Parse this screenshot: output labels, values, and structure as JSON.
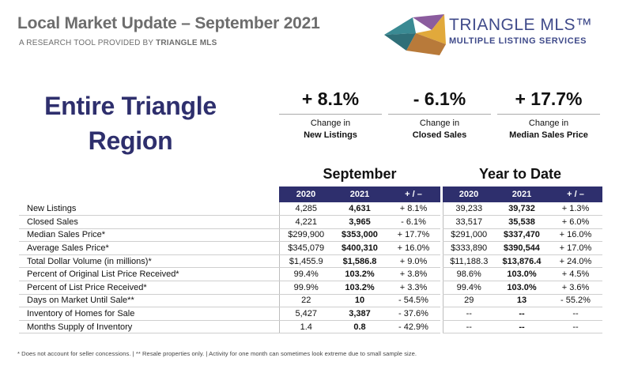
{
  "header": {
    "title": "Local Market Update – September 2021",
    "subtitle_prefix": "A RESEARCH TOOL PROVIDED BY ",
    "subtitle_brand": "TRIANGLE MLS"
  },
  "logo": {
    "name": "TRIANGLE MLS™",
    "tagline": "MULTIPLE LISTING SERVICES",
    "colors": [
      "#3a8a93",
      "#e1a93b",
      "#8b5c9e",
      "#b87a3a",
      "#6b4c8a"
    ]
  },
  "region": {
    "line1": "Entire Triangle",
    "line2": "Region"
  },
  "kpis": [
    {
      "value": "+ 8.1%",
      "label1": "Change in",
      "label2": "New Listings"
    },
    {
      "value": "- 6.1%",
      "label1": "Change in",
      "label2": "Closed Sales"
    },
    {
      "value": "+ 17.7%",
      "label1": "Change in",
      "label2": "Median Sales Price"
    }
  ],
  "table": {
    "group1": "September",
    "group2": "Year to Date",
    "columns": [
      "2020",
      "2021",
      "+ / –",
      "2020",
      "2021",
      "+ / –"
    ],
    "rows": [
      {
        "label": "New Listings",
        "v": [
          "4,285",
          "4,631",
          "+ 8.1%",
          "39,233",
          "39,732",
          "+ 1.3%"
        ]
      },
      {
        "label": "Closed Sales",
        "v": [
          "4,221",
          "3,965",
          "- 6.1%",
          "33,517",
          "35,538",
          "+ 6.0%"
        ]
      },
      {
        "label": "Median Sales Price*",
        "v": [
          "$299,900",
          "$353,000",
          "+ 17.7%",
          "$291,000",
          "$337,470",
          "+ 16.0%"
        ]
      },
      {
        "label": "Average Sales Price*",
        "v": [
          "$345,079",
          "$400,310",
          "+ 16.0%",
          "$333,890",
          "$390,544",
          "+ 17.0%"
        ]
      },
      {
        "label": "Total Dollar Volume (in millions)*",
        "v": [
          "$1,455.9",
          "$1,586.8",
          "+ 9.0%",
          "$11,188.3",
          "$13,876.4",
          "+ 24.0%"
        ]
      },
      {
        "label": "Percent of Original List Price Received*",
        "v": [
          "99.4%",
          "103.2%",
          "+ 3.8%",
          "98.6%",
          "103.0%",
          "+ 4.5%"
        ]
      },
      {
        "label": "Percent of List Price Received*",
        "v": [
          "99.9%",
          "103.2%",
          "+ 3.3%",
          "99.4%",
          "103.0%",
          "+ 3.6%"
        ]
      },
      {
        "label": "Days on Market Until Sale**",
        "v": [
          "22",
          "10",
          "- 54.5%",
          "29",
          "13",
          "- 55.2%"
        ]
      },
      {
        "label": "Inventory of Homes for Sale",
        "v": [
          "5,427",
          "3,387",
          "- 37.6%",
          "--",
          "--",
          "--"
        ]
      },
      {
        "label": "Months Supply of Inventory",
        "v": [
          "1.4",
          "0.8",
          "- 42.9%",
          "--",
          "--",
          "--"
        ]
      }
    ]
  },
  "footnote": "* Does not account for seller concessions.  |  ** Resale properties only.  |  Activity for one month can sometimes look extreme due to small sample size."
}
